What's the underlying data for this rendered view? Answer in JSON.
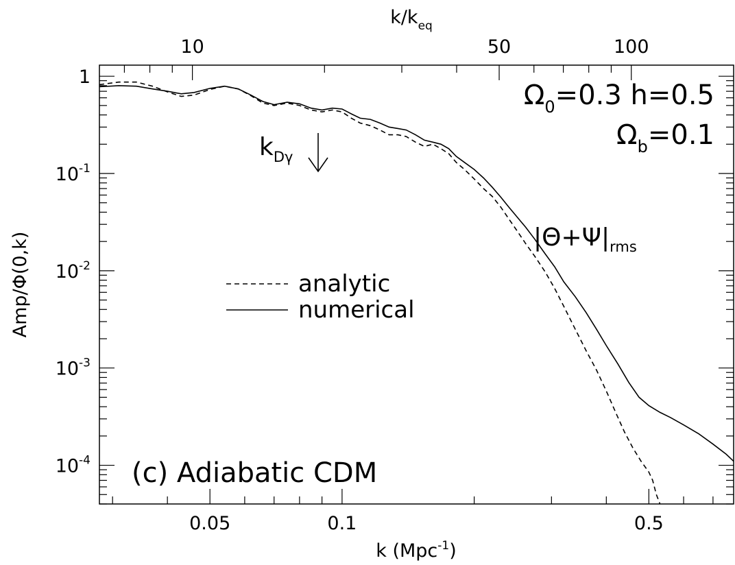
{
  "chart_data": {
    "type": "line",
    "title": "",
    "xlabel": "k (Mpc",
    "xlabel_sup": "-1",
    "xlabel_end": ")",
    "ylabel": "Amp/Φ(0,k)",
    "top_xlabel": "k/k",
    "top_xlabel_sub": "eq",
    "x_scale": "log",
    "y_scale": "log",
    "xlim": [
      0.028,
      0.78
    ],
    "ylim": [
      4e-05,
      1.3
    ],
    "x_ticks": [
      {
        "value": 0.05,
        "label": "0.05"
      },
      {
        "value": 0.1,
        "label": "0.1"
      },
      {
        "value": 0.5,
        "label": "0.5"
      }
    ],
    "top_ticks": [
      {
        "value": 0.0456,
        "label": "10"
      },
      {
        "value": 0.228,
        "label": "50"
      },
      {
        "value": 0.456,
        "label": "100"
      }
    ],
    "y_ticks": [
      {
        "value": 1,
        "base": "1",
        "exp": ""
      },
      {
        "value": 0.1,
        "base": "10",
        "exp": "-1"
      },
      {
        "value": 0.01,
        "base": "10",
        "exp": "-2"
      },
      {
        "value": 0.001,
        "base": "10",
        "exp": "-3"
      },
      {
        "value": 0.0001,
        "base": "10",
        "exp": "-4"
      }
    ],
    "annotations": {
      "omega0": {
        "sym": "Ω",
        "sub": "0",
        "text": "=0.3  h=0.5"
      },
      "omegab": {
        "sym": "Ω",
        "sub": "b",
        "text": "=0.1"
      },
      "kd": {
        "base": "k",
        "sub": "Dγ",
        "x": 0.1
      },
      "amp": {
        "text": "|Θ+Ψ|",
        "sub": "rms"
      },
      "panel": "(c) Adiabatic CDM"
    },
    "legend": {
      "position": "center-left",
      "entries": [
        "analytic",
        "numerical"
      ]
    },
    "series": [
      {
        "name": "numerical",
        "style": "solid",
        "x": [
          0.028,
          0.031,
          0.034,
          0.037,
          0.04,
          0.043,
          0.046,
          0.05,
          0.054,
          0.058,
          0.062,
          0.066,
          0.07,
          0.075,
          0.08,
          0.085,
          0.09,
          0.095,
          0.1,
          0.105,
          0.11,
          0.116,
          0.122,
          0.128,
          0.134,
          0.14,
          0.147,
          0.154,
          0.161,
          0.168,
          0.175,
          0.182,
          0.19,
          0.2,
          0.21,
          0.22,
          0.23,
          0.24,
          0.25,
          0.262,
          0.275,
          0.29,
          0.305,
          0.32,
          0.34,
          0.36,
          0.38,
          0.4,
          0.425,
          0.45,
          0.475,
          0.5,
          0.53,
          0.56,
          0.6,
          0.65,
          0.7,
          0.75,
          0.78
        ],
        "y": [
          0.78,
          0.8,
          0.79,
          0.74,
          0.7,
          0.66,
          0.68,
          0.75,
          0.79,
          0.74,
          0.64,
          0.55,
          0.51,
          0.54,
          0.52,
          0.47,
          0.45,
          0.47,
          0.46,
          0.41,
          0.37,
          0.36,
          0.33,
          0.3,
          0.29,
          0.28,
          0.25,
          0.22,
          0.21,
          0.2,
          0.18,
          0.15,
          0.13,
          0.11,
          0.09,
          0.072,
          0.057,
          0.045,
          0.036,
          0.028,
          0.021,
          0.015,
          0.011,
          0.0077,
          0.0054,
          0.0037,
          0.0025,
          0.0017,
          0.0011,
          0.00071,
          0.0005,
          0.00041,
          0.00035,
          0.00031,
          0.00026,
          0.00021,
          0.000165,
          0.00013,
          0.00011
        ]
      },
      {
        "name": "analytic",
        "style": "dashed",
        "x": [
          0.028,
          0.031,
          0.034,
          0.037,
          0.04,
          0.043,
          0.046,
          0.05,
          0.054,
          0.058,
          0.062,
          0.066,
          0.07,
          0.075,
          0.08,
          0.085,
          0.09,
          0.095,
          0.1,
          0.105,
          0.11,
          0.116,
          0.122,
          0.128,
          0.134,
          0.14,
          0.147,
          0.154,
          0.161,
          0.168,
          0.175,
          0.182,
          0.19,
          0.2,
          0.21,
          0.22,
          0.23,
          0.24,
          0.25,
          0.262,
          0.275,
          0.29,
          0.305,
          0.32,
          0.34,
          0.36,
          0.38,
          0.4,
          0.42,
          0.44,
          0.46,
          0.48,
          0.5,
          0.51,
          0.52,
          0.53
        ],
        "y": [
          0.82,
          0.87,
          0.87,
          0.79,
          0.69,
          0.62,
          0.64,
          0.73,
          0.79,
          0.74,
          0.63,
          0.53,
          0.5,
          0.53,
          0.5,
          0.45,
          0.43,
          0.45,
          0.43,
          0.37,
          0.33,
          0.31,
          0.28,
          0.25,
          0.25,
          0.24,
          0.21,
          0.19,
          0.2,
          0.18,
          0.16,
          0.13,
          0.11,
          0.088,
          0.07,
          0.058,
          0.045,
          0.034,
          0.026,
          0.019,
          0.014,
          0.0098,
          0.0066,
          0.0043,
          0.0025,
          0.0015,
          0.00095,
          0.00058,
          0.00035,
          0.00022,
          0.00015,
          0.00011,
          8.5e-05,
          7e-05,
          5e-05,
          4e-05
        ]
      }
    ]
  }
}
